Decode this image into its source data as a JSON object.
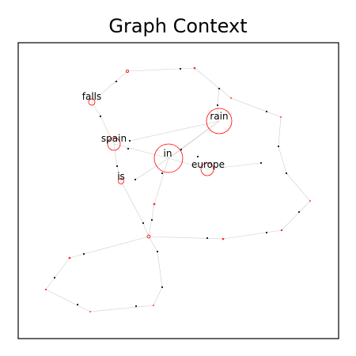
{
  "title": "Graph Context",
  "colors": {
    "node": "#ff0000",
    "edge": "#cccccc",
    "arrow": "#111111",
    "frame": "#000000"
  },
  "graph": {
    "nodes": [
      {
        "id": "rain",
        "label": "rain"
      },
      {
        "id": "in",
        "label": "in"
      },
      {
        "id": "spain",
        "label": "spain"
      },
      {
        "id": "europe",
        "label": "europe"
      },
      {
        "id": "falls",
        "label": "falls"
      },
      {
        "id": "is",
        "label": "is"
      }
    ]
  }
}
